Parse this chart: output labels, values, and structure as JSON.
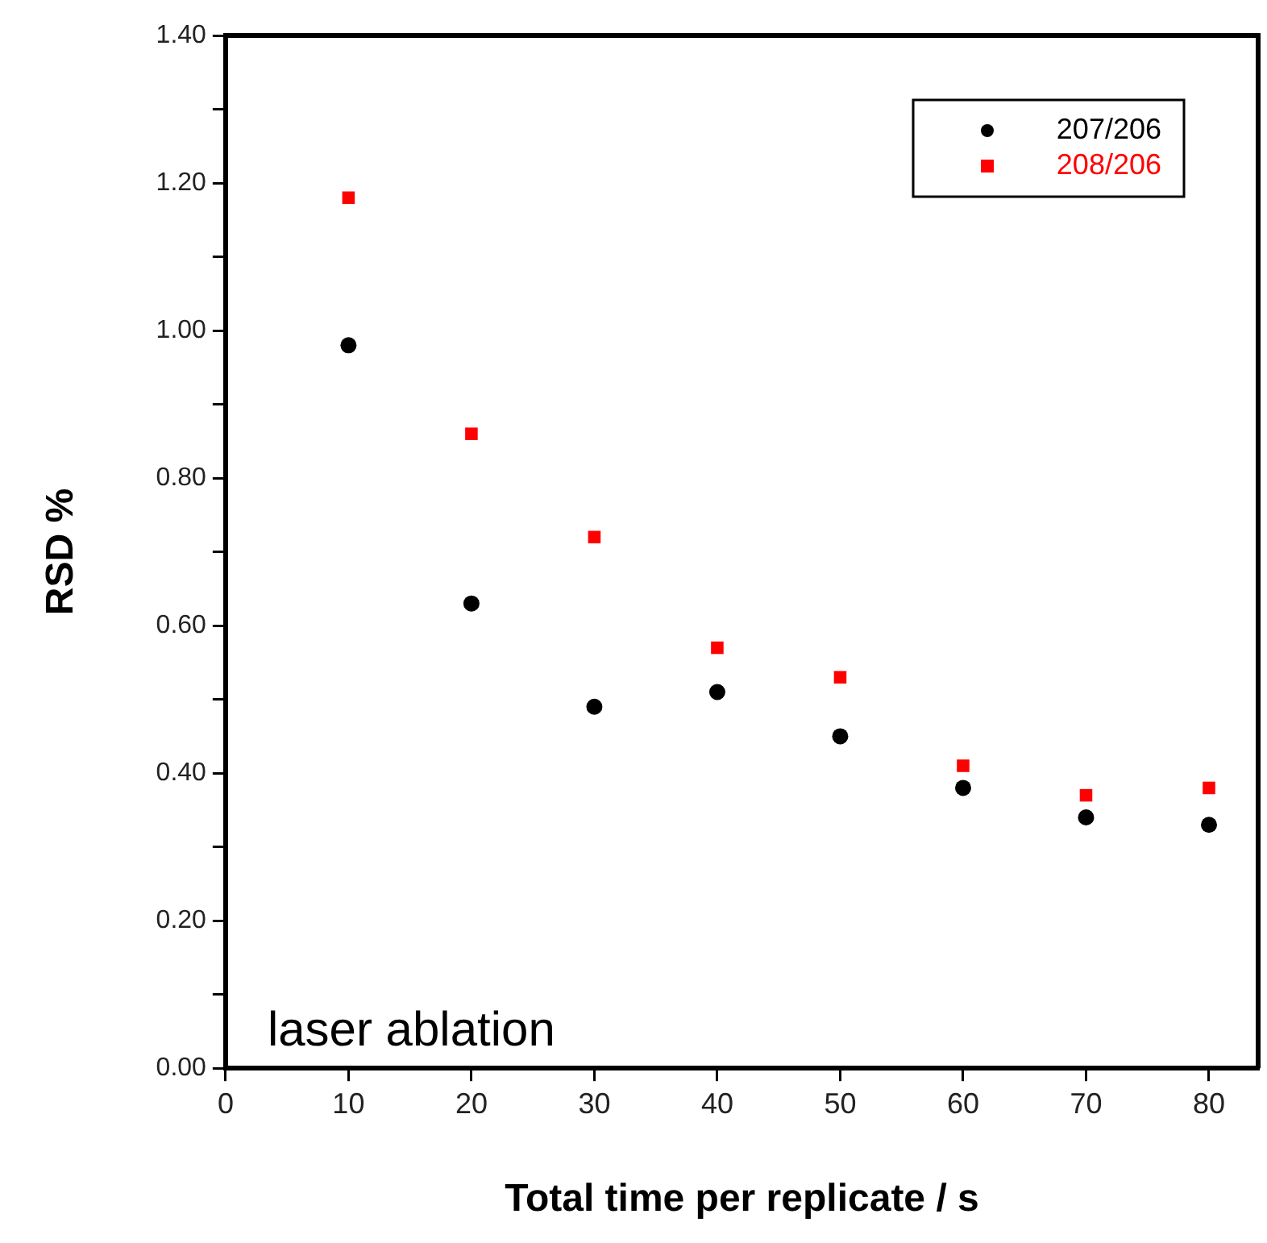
{
  "chart_data": {
    "type": "scatter",
    "xlabel": "Total time per replicate / s",
    "ylabel": "RSD %",
    "x": [
      10,
      20,
      30,
      40,
      50,
      60,
      70,
      80
    ],
    "series": [
      {
        "name": "207/206",
        "color": "#000000",
        "marker": "circle",
        "values": [
          0.98,
          0.63,
          0.49,
          0.51,
          0.45,
          0.38,
          0.34,
          0.33
        ]
      },
      {
        "name": "208/206",
        "color": "#ff0000",
        "marker": "square",
        "values": [
          1.18,
          0.86,
          0.72,
          0.57,
          0.53,
          0.41,
          0.37,
          0.38
        ]
      }
    ],
    "xlim": [
      0,
      84
    ],
    "xticks": [
      0,
      10,
      20,
      30,
      40,
      50,
      60,
      70,
      80
    ],
    "ylim": [
      0,
      1.4
    ],
    "yticks": [
      {
        "value": 0,
        "label": "0.00"
      },
      {
        "value": 0.1,
        "label": null
      },
      {
        "value": 0.2,
        "label": "0.20"
      },
      {
        "value": 0.3,
        "label": null
      },
      {
        "value": 0.4,
        "label": "0.40"
      },
      {
        "value": 0.5,
        "label": null
      },
      {
        "value": 0.6,
        "label": "0.60"
      },
      {
        "value": 0.7,
        "label": null
      },
      {
        "value": 0.8,
        "label": "0.80"
      },
      {
        "value": 0.9,
        "label": null
      },
      {
        "value": 1,
        "label": "1.00"
      },
      {
        "value": 1.1,
        "label": null
      },
      {
        "value": 1.2,
        "label": "1.20"
      },
      {
        "value": 1.3,
        "label": null
      },
      {
        "value": 1.4,
        "label": "1.40"
      }
    ],
    "annotations": [
      "laser ablation"
    ],
    "legend": "top right",
    "grid": false
  }
}
